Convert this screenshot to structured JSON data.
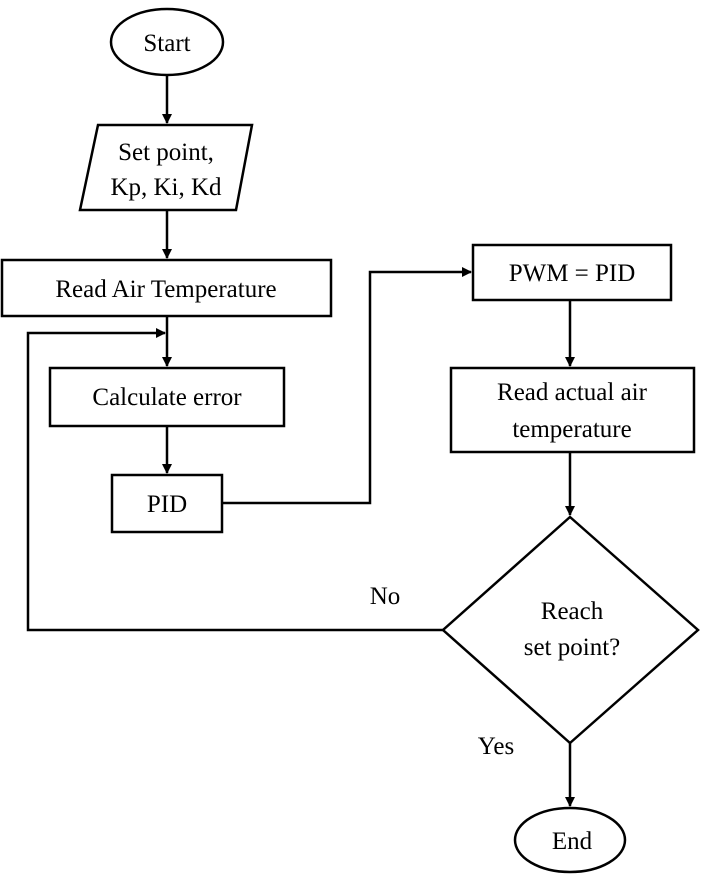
{
  "nodes": {
    "start": "Start",
    "input_line1": "Set point,",
    "input_line2": "Kp, Ki, Kd",
    "read_air": "Read Air Temperature",
    "calc_error": "Calculate error",
    "pid": "PID",
    "pwm": "PWM = PID",
    "read_actual_line1": "Read actual air",
    "read_actual_line2": "temperature",
    "decision_line1": "Reach",
    "decision_line2": "set point?",
    "end": "End"
  },
  "edges": {
    "no_label": "No",
    "yes_label": "Yes"
  },
  "colors": {
    "stroke": "#000000",
    "fill": "#ffffff"
  }
}
